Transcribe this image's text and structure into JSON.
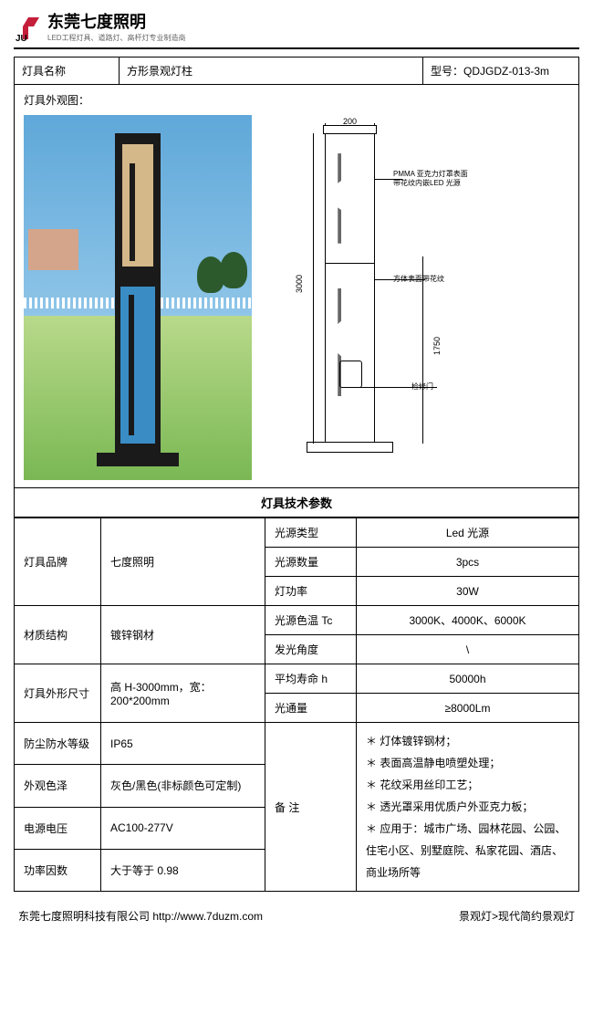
{
  "header": {
    "company": "东莞七度照明",
    "tagline": "LED工程灯具、道路灯、高杆灯专业制造商"
  },
  "name_row": {
    "label": "灯具名称",
    "value": "方形景观灯柱",
    "model_label": "型号：",
    "model_value": "QDJGDZ-013-3m"
  },
  "visual": {
    "title": "灯具外观图：",
    "dim_width": "200",
    "dim_height_full": "3000",
    "dim_height_lower": "1750",
    "callout1": "PMMA 亚克力灯罩表面带花纹内嵌LED 光源",
    "callout2": "方体表面带花纹",
    "callout3": "检修门"
  },
  "spec_title": "灯具技术参数",
  "specs": {
    "brand_lbl": "灯具品牌",
    "brand_val": "七度照明",
    "material_lbl": "材质结构",
    "material_val": "镀锌钢材",
    "size_lbl": "灯具外形尺寸",
    "size_val": "高 H-3000mm，宽：200*200mm",
    "ip_lbl": "防尘防水等级",
    "ip_val": "IP65",
    "color_lbl": "外观色泽",
    "color_val": "灰色/黑色(非标颜色可定制)",
    "volt_lbl": "电源电压",
    "volt_val": "AC100-277V",
    "pf_lbl": "功率因数",
    "pf_val": "大于等于 0.98",
    "src_type_lbl": "光源类型",
    "src_type_val": "Led 光源",
    "src_qty_lbl": "光源数量",
    "src_qty_val": "3pcs",
    "power_lbl": "灯功率",
    "power_val": "30W",
    "cct_lbl": "光源色温 Tc",
    "cct_val": "3000K、4000K、6000K",
    "beam_lbl": "发光角度",
    "beam_val": "\\",
    "life_lbl": "平均寿命 h",
    "life_val": "50000h",
    "lumen_lbl": "光通量",
    "lumen_val": "≥8000Lm",
    "notes_lbl": "备 注",
    "notes": [
      "＊ 灯体镀锌钢材；",
      "＊ 表面高温静电喷塑处理；",
      "＊ 花纹采用丝印工艺；",
      "＊ 透光罩采用优质户外亚克力板；",
      "＊ 应用于：城市广场、园林花园、公园、住宅小区、别墅庭院、私家花园、酒店、商业场所等"
    ]
  },
  "footer": {
    "left": "东莞七度照明科技有限公司   http://www.7duzm.com",
    "right": "景观灯>现代简约景观灯"
  },
  "colors": {
    "text": "#000000",
    "border": "#000000",
    "sky": "#5fa8d9",
    "grass": "#7ab854",
    "post_dark": "#1a1a1a",
    "post_warm": "#d4b88a",
    "post_blue": "#3a8cc4"
  }
}
